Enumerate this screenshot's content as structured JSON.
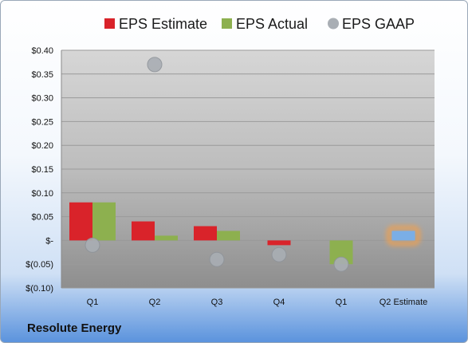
{
  "company": "Resolute Energy",
  "chart_data": {
    "type": "bar",
    "categories": [
      "Q1",
      "Q2",
      "Q3",
      "Q4",
      "Q1",
      "Q2 Estimate"
    ],
    "series": [
      {
        "name": "EPS Estimate",
        "color": "#d9232a",
        "values": [
          0.08,
          0.04,
          0.03,
          -0.01,
          null,
          0.02
        ]
      },
      {
        "name": "EPS Actual",
        "color": "#8db04f",
        "values": [
          0.08,
          0.01,
          0.02,
          null,
          -0.05,
          null
        ]
      },
      {
        "name": "EPS GAAP",
        "color": "#a9aeb4",
        "marker": "circle",
        "values": [
          -0.01,
          0.37,
          -0.04,
          -0.03,
          -0.05,
          null
        ]
      }
    ],
    "highlight": {
      "category": "Q2 Estimate",
      "color": "#7aaee6",
      "glow": "#f0a050"
    },
    "ylim": [
      -0.1,
      0.4
    ],
    "yticks": [
      0.4,
      0.35,
      0.3,
      0.25,
      0.2,
      0.15,
      0.1,
      0.05,
      0,
      -0.05,
      -0.1
    ],
    "ytick_labels": [
      "$0.40",
      "$0.35",
      "$0.30",
      "$0.25",
      "$0.20",
      "$0.15",
      "$0.10",
      "$0.05",
      "$-",
      "$(0.05)",
      "$(0.10)"
    ],
    "legend_position": "top",
    "grid": true
  }
}
